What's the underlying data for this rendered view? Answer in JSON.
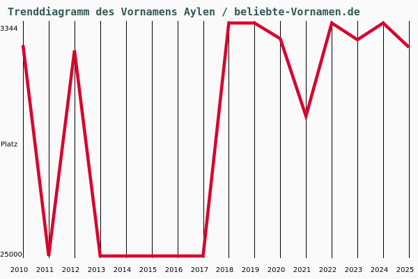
{
  "title": "Trenddiagramm des Vornamens Aylen / beliebte-Vornamen.de",
  "y_axis": {
    "top_label": "3344",
    "mid_label": "Platz",
    "bottom_label": "25000"
  },
  "colors": {
    "line": "#d9002b",
    "title": "#2f5a55",
    "grid": "#000000",
    "background": "#fafafa"
  },
  "chart_data": {
    "type": "line",
    "title": "Trenddiagramm des Vornamens Aylen / beliebte-Vornamen.de",
    "xlabel": "",
    "ylabel": "Platz",
    "ylim": [
      25000,
      3344
    ],
    "y_inverted": true,
    "grid": {
      "vertical": true,
      "horizontal": false
    },
    "categories": [
      "2010",
      "2011",
      "2012",
      "2013",
      "2014",
      "2015",
      "2016",
      "2017",
      "2018",
      "2019",
      "2020",
      "2021",
      "2022",
      "2023",
      "2024",
      "2025"
    ],
    "series": [
      {
        "name": "Aylen",
        "values": [
          5400,
          25000,
          5900,
          25000,
          25000,
          25000,
          25000,
          25000,
          3344,
          3344,
          4800,
          12000,
          3344,
          4900,
          3344,
          5600
        ]
      }
    ]
  }
}
